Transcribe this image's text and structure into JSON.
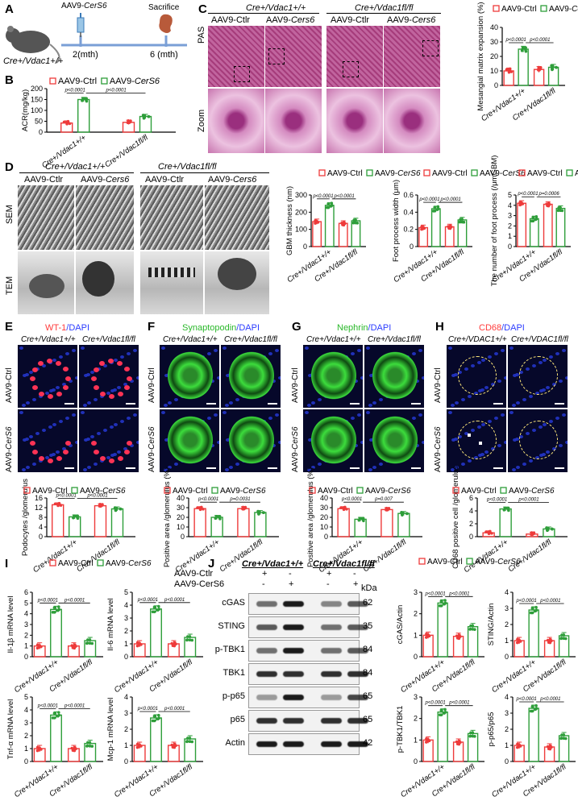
{
  "panels": {
    "A": "A",
    "B": "B",
    "C": "C",
    "D": "D",
    "E": "E",
    "F": "F",
    "G": "G",
    "H": "H",
    "I": "I",
    "J": "J"
  },
  "panelA": {
    "timeline_left": "2(mth)",
    "timeline_right": "6 (mth)",
    "injection": "AAV9-CerS6",
    "sacrifice": "Sacrifice",
    "mouse": "Cre+/Vdac1+/+"
  },
  "groups": {
    "wt": "Cre+/Vdac1+/+",
    "fl": "Cre+/Vdac1fl/fl",
    "wt_cap": "Cre+/VDAC1+/+",
    "fl_cap": "Cre+/VDAC1fl/fl"
  },
  "treat": {
    "ctrl": "AAV9-Ctrl",
    "cers6": "AAV9-CerS6",
    "ctlr": "AAV9-Ctlr",
    "cers6_plain": "AAV9-CerS6"
  },
  "rows": {
    "pas": "PAS",
    "zoom": "Zoom",
    "sem": "SEM",
    "tem": "TEM"
  },
  "stains": {
    "E": {
      "marker": "WT-1",
      "dapi": "/DAPI",
      "color": "#ff3b3b"
    },
    "F": {
      "marker": "Synaptopodin",
      "dapi": "/DAPI",
      "color": "#34c934"
    },
    "G": {
      "marker": "Nephrin",
      "dapi": "/DAPI",
      "color": "#34c934"
    },
    "H": {
      "marker": "CD68",
      "dapi": "/DAPI",
      "color": "#ff3b3b"
    }
  },
  "pvals": {
    "p1": "p<0.0001",
    "p0031": "p=0.0031",
    "p007": "p=0.007",
    "p0006": "p=0.0006"
  },
  "colors": {
    "ctrl": "#ee3b3b",
    "cers6": "#2e9e3a",
    "dapi": "#2b3cff"
  },
  "westernJ": {
    "rows": [
      {
        "label": "cGAS",
        "kda": "62"
      },
      {
        "label": "STING",
        "kda": "35"
      },
      {
        "label": "p-TBK1",
        "kda": "84"
      },
      {
        "label": "TBK1",
        "kda": "84"
      },
      {
        "label": "p-p65",
        "kda": "65"
      },
      {
        "label": "p65",
        "kda": "65"
      },
      {
        "label": "Actin",
        "kda": "42"
      }
    ],
    "kda_header": "kDa",
    "treat_rows": [
      {
        "label": "AAV9-Ctlr",
        "signs": [
          "+",
          "-",
          "+",
          "-"
        ]
      },
      {
        "label": "AAV9-CerS6",
        "signs": [
          "-",
          "+",
          "-",
          "+"
        ]
      }
    ]
  },
  "chart_data": [
    {
      "id": "B",
      "type": "bar",
      "categories": [
        "Cre+/Vdac1+/+",
        "Cre+/Vdac1fl/fl"
      ],
      "ylabel": "ACR(mg/kg)",
      "ylim": [
        0,
        200
      ],
      "yticks": [
        0,
        50,
        100,
        150,
        200
      ],
      "series": [
        {
          "name": "AAV9-Ctrl",
          "values": [
            42,
            45
          ]
        },
        {
          "name": "AAV9-CerS6",
          "values": [
            150,
            72
          ]
        }
      ],
      "annotations": [
        "p<0.0001",
        "p<0.0001"
      ]
    },
    {
      "id": "C",
      "type": "bar",
      "categories": [
        "Cre+/Vdac1+/+",
        "Cre+/Vdac1fl/fl"
      ],
      "ylabel": "Mesangial matrix expansion (%)",
      "ylim": [
        0,
        40
      ],
      "yticks": [
        0,
        10,
        20,
        30,
        40
      ],
      "series": [
        {
          "name": "AAV9-Ctrl",
          "values": [
            10,
            11
          ]
        },
        {
          "name": "AAV9-CerS6",
          "values": [
            25,
            12.5
          ]
        }
      ],
      "annotations": [
        "p<0.0001",
        "p<0.0001"
      ]
    },
    {
      "id": "D1",
      "type": "bar",
      "categories": [
        "Cre+/Vdac1+/+",
        "Cre+/Vdac1fl/fl"
      ],
      "ylabel": "GBM thickness (nm)",
      "ylim": [
        0,
        300
      ],
      "yticks": [
        0,
        100,
        200,
        300
      ],
      "series": [
        {
          "name": "AAV9-Ctrl",
          "values": [
            145,
            135
          ]
        },
        {
          "name": "AAV9-CerS6",
          "values": [
            240,
            150
          ]
        }
      ],
      "annotations": [
        "p<0.0001",
        "p<0.0001"
      ]
    },
    {
      "id": "D2",
      "type": "bar",
      "categories": [
        "Cre+/Vdac1+/+",
        "Cre+/Vdac1fl/fl"
      ],
      "ylabel": "Foot process width (μm)",
      "ylim": [
        0,
        0.6
      ],
      "yticks": [
        0.0,
        0.2,
        0.4,
        0.6
      ],
      "series": [
        {
          "name": "AAV9-Ctrl",
          "values": [
            0.22,
            0.23
          ]
        },
        {
          "name": "AAV9-CerS6",
          "values": [
            0.44,
            0.31
          ]
        }
      ],
      "annotations": [
        "p<0.0001",
        "p<0.0001"
      ]
    },
    {
      "id": "D3",
      "type": "bar",
      "categories": [
        "Cre+/Vdac1+/+",
        "Cre+/Vdac1fl/fl"
      ],
      "ylabel": "The number of foot process (/μmGBM)",
      "ylim": [
        0,
        5
      ],
      "yticks": [
        0,
        1,
        2,
        3,
        4,
        5
      ],
      "series": [
        {
          "name": "AAV9-Ctrl",
          "values": [
            4.2,
            4.1
          ]
        },
        {
          "name": "AAV9-CerS6",
          "values": [
            2.7,
            3.7
          ]
        }
      ],
      "annotations": [
        "p<0.0001",
        "p=0.0006"
      ]
    },
    {
      "id": "E",
      "type": "bar",
      "categories": [
        "Cre+/Vdac1+/+",
        "Cre+/Vdac1fl/fl"
      ],
      "ylabel": "Podocytes /glomerulus",
      "ylim": [
        0,
        16
      ],
      "yticks": [
        0,
        4,
        8,
        12,
        16
      ],
      "series": [
        {
          "name": "AAV9-Ctrl",
          "values": [
            13.2,
            12.8
          ]
        },
        {
          "name": "AAV9-CerS6",
          "values": [
            8.2,
            11.5
          ]
        }
      ],
      "annotations": [
        "p<0.0001",
        "p<0.0001"
      ]
    },
    {
      "id": "F",
      "type": "bar",
      "categories": [
        "Cre+/Vdac1+/+",
        "Cre+/Vdac1fl/fl"
      ],
      "ylabel": "Positive area /glomerulus (%)",
      "ylim": [
        0,
        40
      ],
      "yticks": [
        0,
        10,
        20,
        30,
        40
      ],
      "series": [
        {
          "name": "AAV9-Ctrl",
          "values": [
            29,
            29
          ]
        },
        {
          "name": "AAV9-CerS6",
          "values": [
            20,
            25
          ]
        }
      ],
      "annotations": [
        "p<0.0001",
        "p=0.0031"
      ]
    },
    {
      "id": "G",
      "type": "bar",
      "categories": [
        "Cre+/Vdac1+/+",
        "Cre+/Vdac1fl/fl"
      ],
      "ylabel": "Positive area /glomerulus (%)",
      "ylim": [
        0,
        40
      ],
      "yticks": [
        0,
        10,
        20,
        30,
        40
      ],
      "series": [
        {
          "name": "AAV9-Ctrl",
          "values": [
            29,
            28
          ]
        },
        {
          "name": "AAV9-CerS6",
          "values": [
            18,
            24
          ]
        }
      ],
      "annotations": [
        "p<0.0001",
        "p=0.007"
      ]
    },
    {
      "id": "H",
      "type": "bar",
      "categories": [
        "Cre+/Vdac1+/+",
        "Cre+/Vdac1fl/fl"
      ],
      "ylabel": "CD68 positive cell /glomerulus",
      "ylim": [
        0,
        6
      ],
      "yticks": [
        0,
        2,
        4,
        6
      ],
      "series": [
        {
          "name": "AAV9-Ctrl",
          "values": [
            0.6,
            0.4
          ]
        },
        {
          "name": "AAV9-CerS6",
          "values": [
            4.3,
            1.2
          ]
        }
      ],
      "annotations": [
        "p<0.0001",
        "p<0.0001"
      ]
    },
    {
      "id": "I1",
      "type": "bar",
      "categories": [
        "Cre+/Vdac1+/+",
        "Cre+/Vdac1fl/fl"
      ],
      "ylabel": "Il-1β mRNA level",
      "ylim": [
        0,
        6
      ],
      "yticks": [
        0,
        1,
        2,
        3,
        4,
        5,
        6
      ],
      "series": [
        {
          "name": "AAV9-Ctrl",
          "values": [
            1,
            1
          ]
        },
        {
          "name": "AAV9-CerS6",
          "values": [
            4.4,
            1.5
          ]
        }
      ],
      "annotations": [
        "p<0.0001",
        "p<0.0001"
      ]
    },
    {
      "id": "I2",
      "type": "bar",
      "categories": [
        "Cre+/Vdac1+/+",
        "Cre+/Vdac1fl/fl"
      ],
      "ylabel": "Il-6 mRNA level",
      "ylim": [
        0,
        5
      ],
      "yticks": [
        0,
        1,
        2,
        3,
        4,
        5
      ],
      "series": [
        {
          "name": "AAV9-Ctrl",
          "values": [
            1,
            1
          ]
        },
        {
          "name": "AAV9-CerS6",
          "values": [
            3.7,
            1.5
          ]
        }
      ],
      "annotations": [
        "p<0.0001",
        "p<0.0001"
      ]
    },
    {
      "id": "I3",
      "type": "bar",
      "categories": [
        "Cre+/Vdac1+/+",
        "Cre+/Vdac1fl/fl"
      ],
      "ylabel": "Tnf-α mRNA level",
      "ylim": [
        0,
        5
      ],
      "yticks": [
        0,
        1,
        2,
        3,
        4,
        5
      ],
      "series": [
        {
          "name": "AAV9-Ctrl",
          "values": [
            1,
            1
          ]
        },
        {
          "name": "AAV9-CerS6",
          "values": [
            3.6,
            1.4
          ]
        }
      ],
      "annotations": [
        "p<0.0001",
        "p<0.0001"
      ]
    },
    {
      "id": "I4",
      "type": "bar",
      "categories": [
        "Cre+/Vdac1+/+",
        "Cre+/Vdac1fl/fl"
      ],
      "ylabel": "Mcp-1 mRNA level",
      "ylim": [
        0,
        4
      ],
      "yticks": [
        0,
        1,
        2,
        3,
        4
      ],
      "series": [
        {
          "name": "AAV9-Ctrl",
          "values": [
            1,
            1
          ]
        },
        {
          "name": "AAV9-CerS6",
          "values": [
            2.7,
            1.4
          ]
        }
      ],
      "annotations": [
        "p<0.0001",
        "p<0.0001"
      ]
    },
    {
      "id": "J1",
      "type": "bar",
      "categories": [
        "Cre+/Vdac1+/+",
        "Cre+/Vdac1fl/fl"
      ],
      "ylabel": "cGAS/Actin",
      "ylim": [
        0,
        3
      ],
      "yticks": [
        0,
        1,
        2,
        3
      ],
      "series": [
        {
          "name": "AAV9-Ctrl",
          "values": [
            1,
            0.95
          ]
        },
        {
          "name": "AAV9-CerS6",
          "values": [
            2.5,
            1.4
          ]
        }
      ],
      "annotations": [
        "p<0.0001",
        "p<0.0001"
      ]
    },
    {
      "id": "J2",
      "type": "bar",
      "categories": [
        "Cre+/Vdac1+/+",
        "Cre+/Vdac1fl/fl"
      ],
      "ylabel": "STING/Actin",
      "ylim": [
        0,
        4
      ],
      "yticks": [
        0,
        1,
        2,
        3,
        4
      ],
      "series": [
        {
          "name": "AAV9-Ctrl",
          "values": [
            1,
            1
          ]
        },
        {
          "name": "AAV9-CerS6",
          "values": [
            2.9,
            1.3
          ]
        }
      ],
      "annotations": [
        "p<0.0001",
        "p<0.0001"
      ]
    },
    {
      "id": "J3",
      "type": "bar",
      "categories": [
        "Cre+/Vdac1+/+",
        "Cre+/Vdac1fl/fl"
      ],
      "ylabel": "p-TBK1/TBK1",
      "ylim": [
        0,
        3
      ],
      "yticks": [
        0,
        1,
        2,
        3
      ],
      "series": [
        {
          "name": "AAV9-Ctrl",
          "values": [
            1,
            0.9
          ]
        },
        {
          "name": "AAV9-CerS6",
          "values": [
            2.3,
            1.3
          ]
        }
      ],
      "annotations": [
        "p<0.0001",
        "p<0.0001"
      ]
    },
    {
      "id": "J4",
      "type": "bar",
      "categories": [
        "Cre+/Vdac1+/+",
        "Cre+/Vdac1fl/fl"
      ],
      "ylabel": "p-p65/p65",
      "ylim": [
        0,
        4
      ],
      "yticks": [
        0,
        1,
        2,
        3,
        4
      ],
      "series": [
        {
          "name": "AAV9-Ctrl",
          "values": [
            1,
            0.9
          ]
        },
        {
          "name": "AAV9-CerS6",
          "values": [
            3.3,
            1.6
          ]
        }
      ],
      "annotations": [
        "p<0.0001",
        "p<0.0001"
      ]
    }
  ]
}
